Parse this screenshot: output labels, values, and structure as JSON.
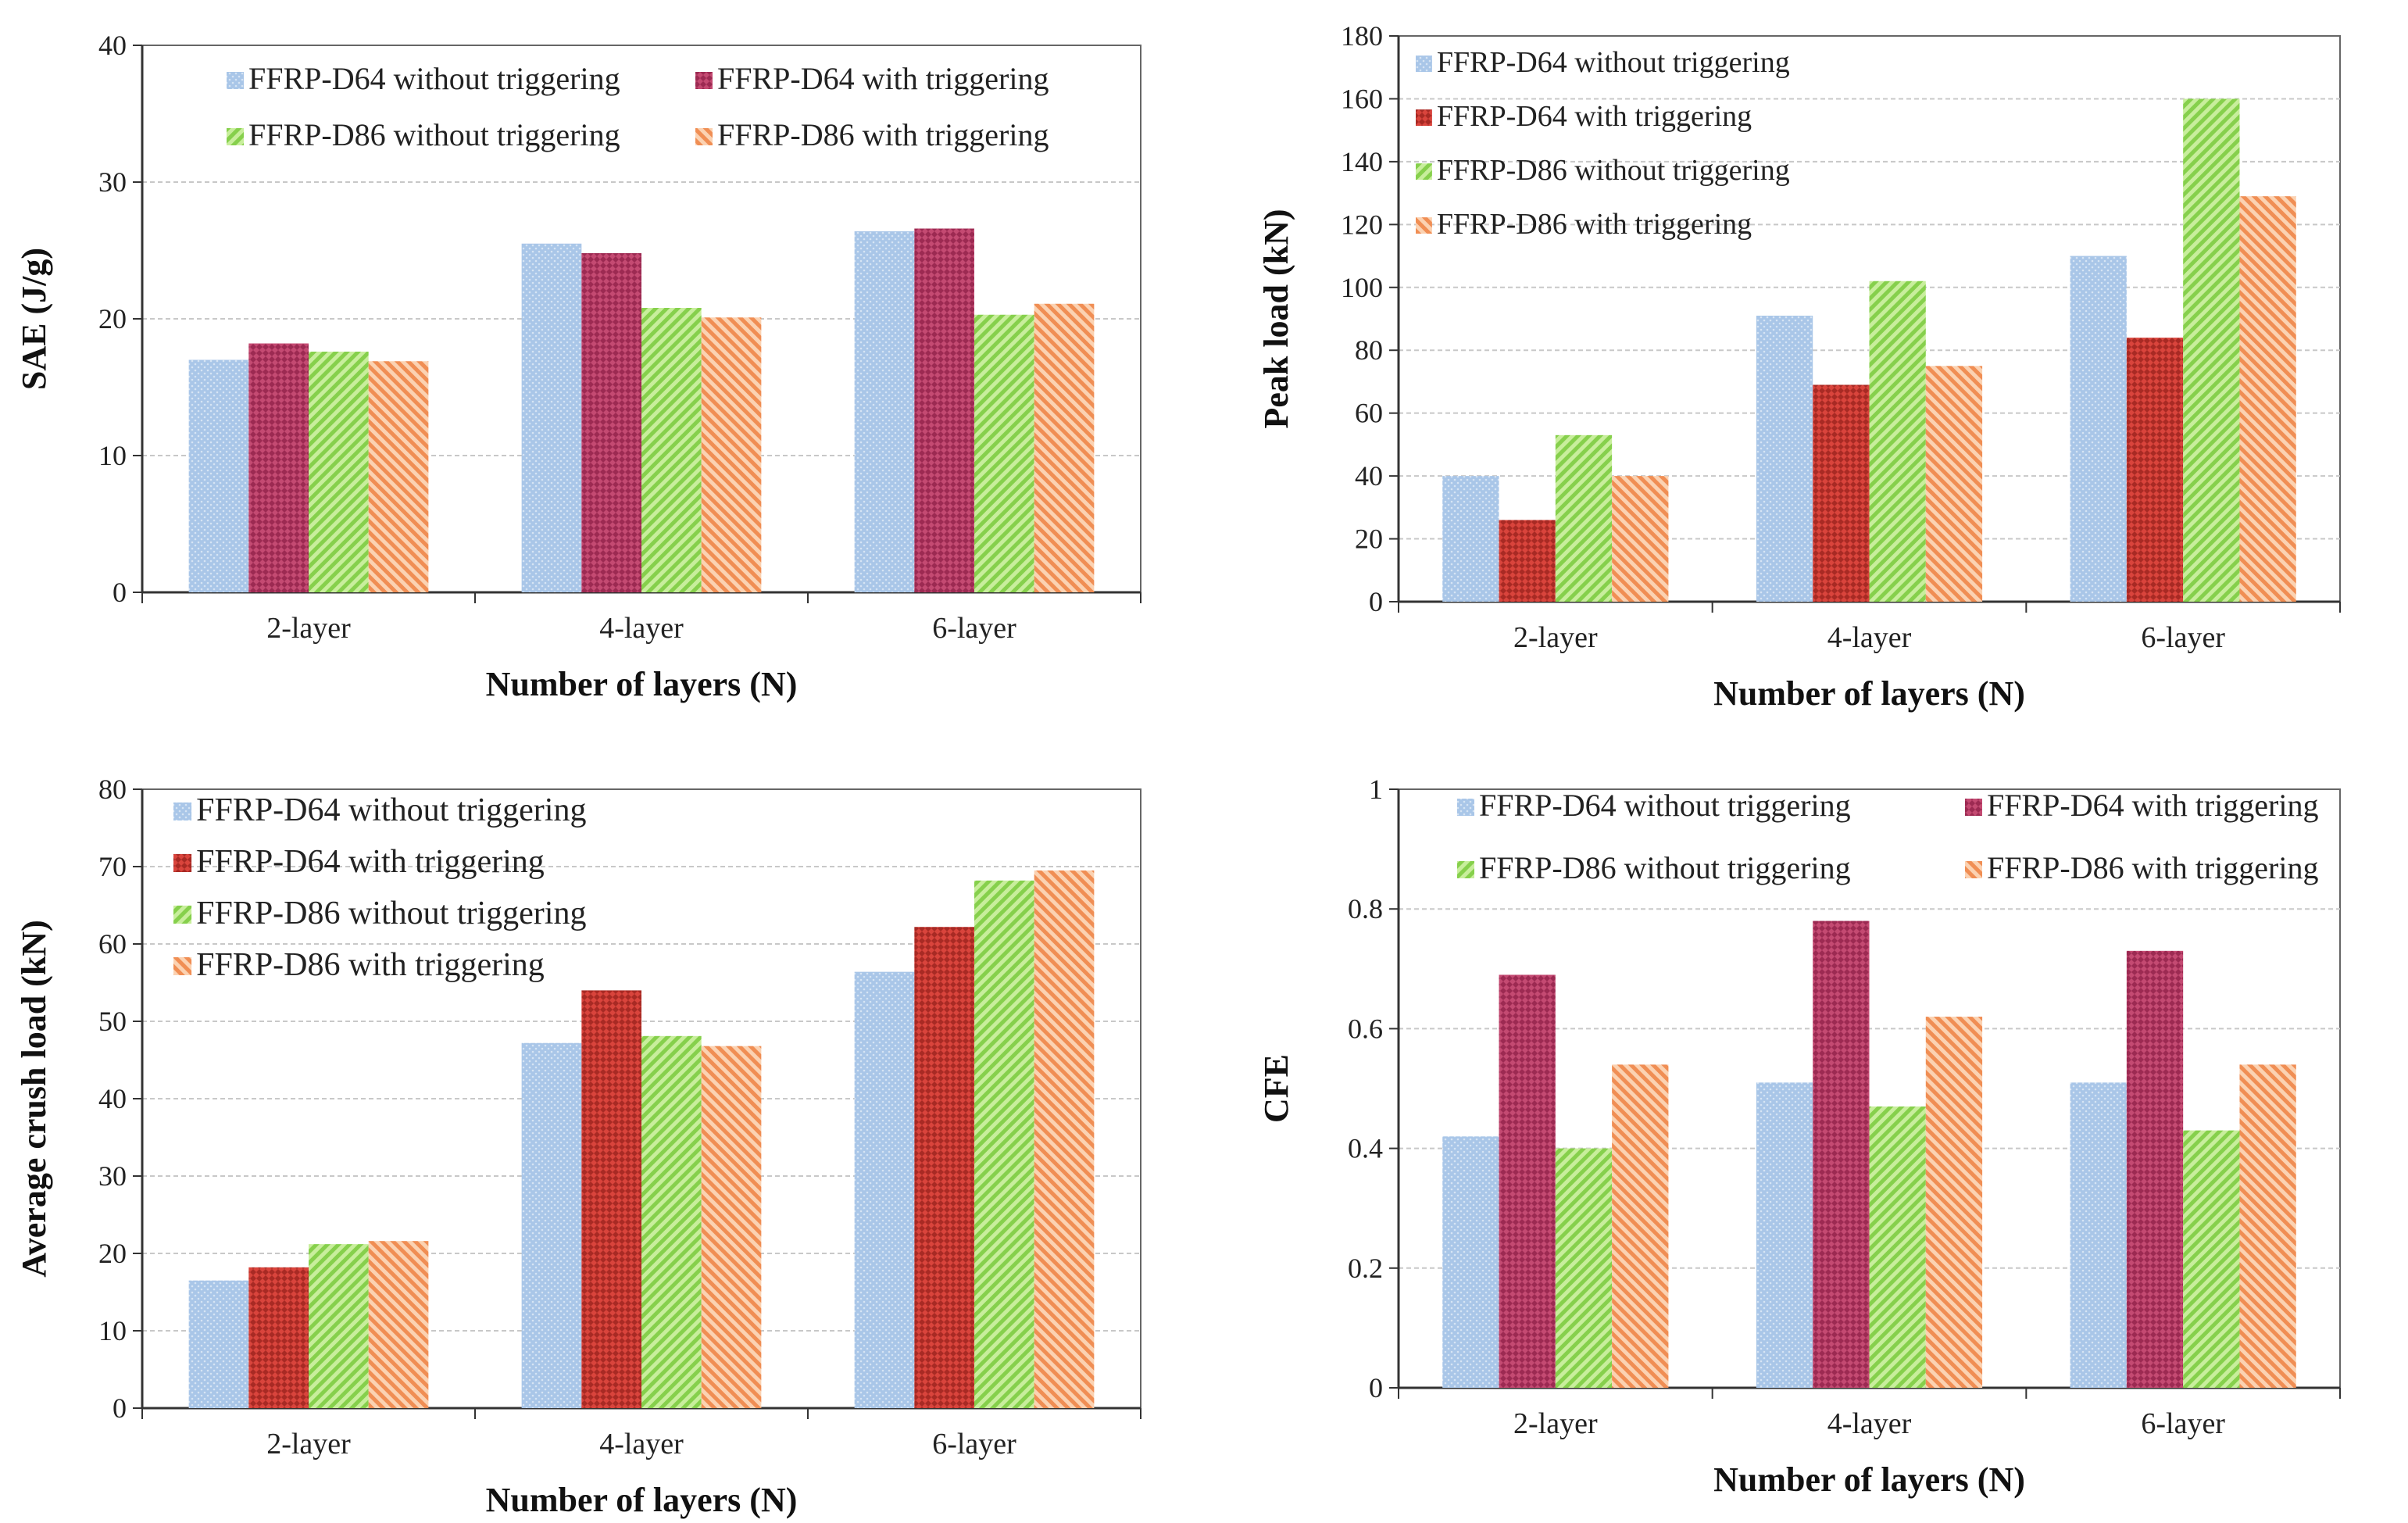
{
  "colors": {
    "d64_without": "#a6c4e6",
    "d64_with": "#c8456e",
    "d86_without": "#a8e07a",
    "d86_with": "#f4a46e"
  },
  "chart_data": [
    {
      "type": "bar",
      "title": "",
      "xlabel": "Number of layers (N)",
      "ylabel": "SAE (J/g)",
      "ylim": [
        0,
        40
      ],
      "yticks": [
        "0",
        "10",
        "20",
        "30",
        "40"
      ],
      "categories": [
        "2-layer",
        "4-layer",
        "6-layer"
      ],
      "legend_layout": "grid",
      "series": [
        {
          "name": "FFRP-D64 without triggering",
          "values": [
            17.0,
            25.5,
            26.4
          ],
          "color_key": "d64_without"
        },
        {
          "name": "FFRP-D64 with triggering",
          "values": [
            18.2,
            24.8,
            26.6
          ],
          "color_key": "d64_with"
        },
        {
          "name": "FFRP-D86 without triggering",
          "values": [
            17.6,
            20.8,
            20.3
          ],
          "color_key": "d86_without"
        },
        {
          "name": "FFRP-D86 with triggering",
          "values": [
            16.9,
            20.1,
            21.1
          ],
          "color_key": "d86_with"
        }
      ]
    },
    {
      "type": "bar",
      "title": "",
      "xlabel": "Number of layers (N)",
      "ylabel": "Peak load (kN)",
      "ylim": [
        0,
        180
      ],
      "yticks": [
        "0",
        "20",
        "40",
        "60",
        "80",
        "100",
        "120",
        "140",
        "160",
        "180"
      ],
      "categories": [
        "2-layer",
        "4-layer",
        "6-layer"
      ],
      "legend_layout": "column",
      "series": [
        {
          "name": "FFRP-D64 without triggering",
          "values": [
            40,
            91,
            110
          ],
          "color_key": "d64_without"
        },
        {
          "name": "FFRP-D64 with triggering",
          "values": [
            26,
            69,
            84
          ],
          "color_key": "d64_with_red"
        },
        {
          "name": "FFRP-D86 without triggering",
          "values": [
            53,
            102,
            160
          ],
          "color_key": "d86_without"
        },
        {
          "name": "FFRP-D86 with triggering",
          "values": [
            40,
            75,
            129
          ],
          "color_key": "d86_with"
        }
      ]
    },
    {
      "type": "bar",
      "title": "",
      "xlabel": "Number of layers (N)",
      "ylabel": "Average crush load (kN)",
      "ylim": [
        0,
        80
      ],
      "yticks": [
        "0",
        "10",
        "20",
        "30",
        "40",
        "50",
        "60",
        "70",
        "80"
      ],
      "categories": [
        "2-layer",
        "4-layer",
        "6-layer"
      ],
      "legend_layout": "column",
      "series": [
        {
          "name": "FFRP-D64 without triggering",
          "values": [
            16.5,
            47.2,
            56.4
          ],
          "color_key": "d64_without"
        },
        {
          "name": "FFRP-D64 with triggering",
          "values": [
            18.2,
            54.0,
            62.2
          ],
          "color_key": "d64_with_red"
        },
        {
          "name": "FFRP-D86 without triggering",
          "values": [
            21.2,
            48.1,
            68.2
          ],
          "color_key": "d86_without"
        },
        {
          "name": "FFRP-D86 with triggering",
          "values": [
            21.6,
            46.8,
            69.5
          ],
          "color_key": "d86_with"
        }
      ]
    },
    {
      "type": "bar",
      "title": "",
      "xlabel": "Number of layers (N)",
      "ylabel": "CFE",
      "ylim": [
        0,
        1
      ],
      "yticks": [
        "0",
        "0.2",
        "0.4",
        "0.6",
        "0.8",
        "1"
      ],
      "categories": [
        "2-layer",
        "4-layer",
        "6-layer"
      ],
      "legend_layout": "grid",
      "series": [
        {
          "name": "FFRP-D64 without triggering",
          "values": [
            0.42,
            0.51,
            0.51
          ],
          "color_key": "d64_without"
        },
        {
          "name": "FFRP-D64 with triggering",
          "values": [
            0.69,
            0.78,
            0.73
          ],
          "color_key": "d64_with"
        },
        {
          "name": "FFRP-D86 without triggering",
          "values": [
            0.4,
            0.47,
            0.43
          ],
          "color_key": "d86_without"
        },
        {
          "name": "FFRP-D86 with triggering",
          "values": [
            0.54,
            0.62,
            0.54
          ],
          "color_key": "d86_with"
        }
      ]
    }
  ]
}
